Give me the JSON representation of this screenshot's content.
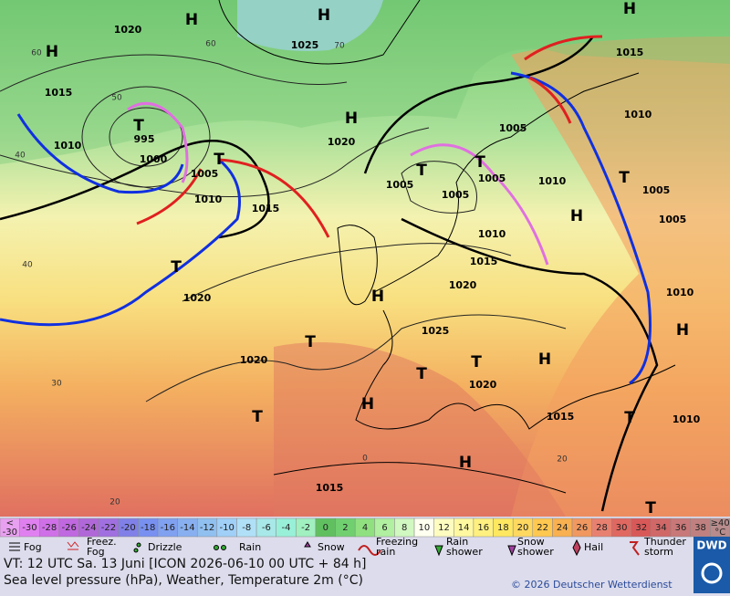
{
  "map": {
    "pressure_centers": [
      "H",
      "H",
      "H",
      "H",
      "T",
      "H",
      "T",
      "T",
      "T",
      "H",
      "H",
      "T",
      "T",
      "H",
      "T",
      "T",
      "H",
      "H",
      "T",
      "H",
      "T",
      "T",
      "T"
    ],
    "isobar_labels": [
      "1020",
      "1025",
      "1015",
      "1010",
      "995",
      "1000",
      "1005",
      "1010",
      "1015",
      "1020",
      "1005",
      "1005",
      "1005",
      "1005",
      "1010",
      "1010",
      "1005",
      "1005",
      "1010",
      "1015",
      "1020",
      "1020",
      "1025",
      "1010",
      "1020",
      "1020",
      "1015",
      "1010",
      "1015",
      "1015"
    ],
    "grid_labels": [
      "60",
      "50",
      "40",
      "40",
      "30",
      "20",
      "0",
      "20",
      "70",
      "60"
    ]
  },
  "temperature_scale": {
    "low_end": [
      "<",
      "-30"
    ],
    "values": [
      -30,
      -28,
      -26,
      -24,
      -22,
      -20,
      -18,
      -16,
      -14,
      -12,
      -10,
      -8,
      -6,
      -4,
      -2,
      0,
      2,
      4,
      6,
      8,
      10,
      12,
      14,
      16,
      18,
      20,
      22,
      24,
      26,
      28,
      30,
      32,
      34,
      36,
      38
    ],
    "high_end": [
      "≥40",
      "°C"
    ],
    "low_color": "#e8a0f0",
    "high_color": "#b88c8c",
    "colors": [
      "#e080f0",
      "#d070e8",
      "#c068e0",
      "#b068d8",
      "#a070e0",
      "#8080e8",
      "#7890f0",
      "#80a0f0",
      "#88b0f0",
      "#90c0f0",
      "#a0d0f8",
      "#b0e0f8",
      "#a8e8e8",
      "#98f0d8",
      "#a0f0c0",
      "#60c060",
      "#70d070",
      "#90e080",
      "#b0f0a0",
      "#d0f8c0",
      "#fffff0",
      "#fffcc0",
      "#fff8a0",
      "#fff080",
      "#ffe860",
      "#ffd860",
      "#ffc850",
      "#f8b050",
      "#f09860",
      "#e88070",
      "#e06860",
      "#d85858",
      "#d06868",
      "#c87878",
      "#c08080"
    ]
  },
  "weather_legend": [
    "Fog",
    "Freez. Fog",
    "Drizzle",
    "Rain",
    "Snow",
    "Freezing rain",
    "Rain shower",
    "Snow shower",
    "Hail",
    "Thunder storm"
  ],
  "footer": {
    "valid_time": "VT: 12 UTC Sa.  13 Juni [ICON 2026-06-10  00 UTC + 84 h]",
    "description": "Sea level pressure (hPa), Weather, Temperature 2m (°C)",
    "copyright": "© 2026 Deutscher Wetterdienst",
    "logo": "DWD"
  }
}
